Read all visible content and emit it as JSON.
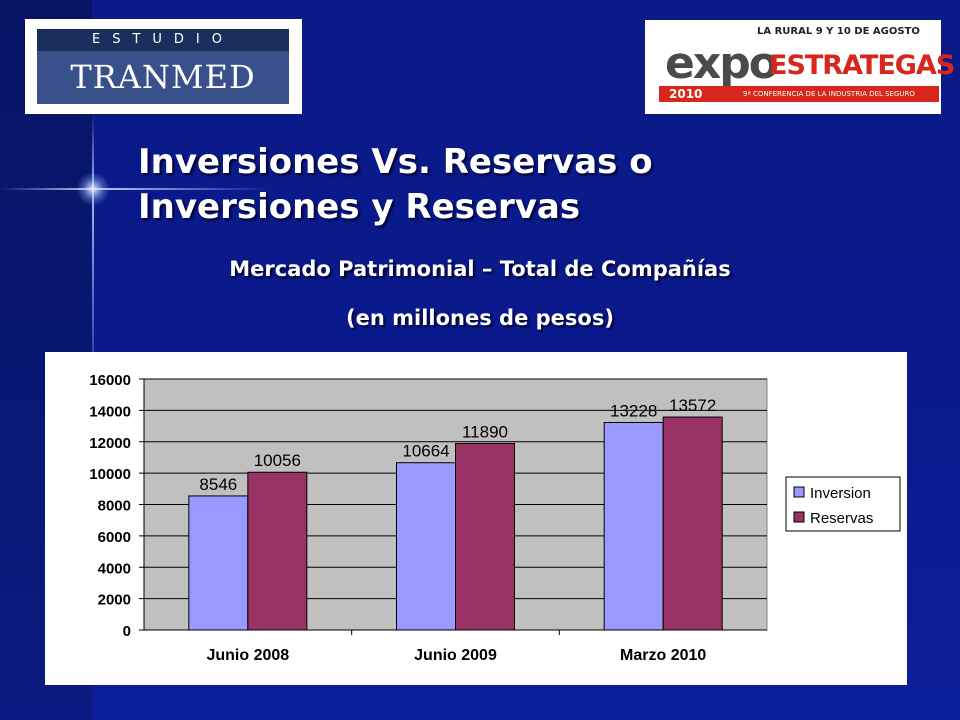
{
  "logos": {
    "left": {
      "top_text": "ESTUDIO",
      "main_text": "TRANMED"
    },
    "right": {
      "top_text": "LA RURAL 9 Y 10 DE AGOSTO",
      "brand_part1": "expo",
      "brand_part2": "ESTRATEGAS",
      "year": "2010",
      "tagline": "9ª CONFERENCIA DE LA INDUSTRIA DEL SEGURO"
    }
  },
  "title_line1": "Inversiones Vs. Reservas o",
  "title_line2": "Inversiones y Reservas",
  "subtitle_line1": "Mercado Patrimonial – Total de Compañías",
  "subtitle_line2": "(en millones de pesos)",
  "colors": {
    "background": "#0a1a86",
    "inversion": "#9999ff",
    "reservas": "#993366",
    "plot_area": "#c0c0c0"
  },
  "chart_data": {
    "type": "bar",
    "categories": [
      "Junio 2008",
      "Junio 2009",
      "Marzo 2010"
    ],
    "series": [
      {
        "name": "Inversion",
        "values": [
          8546,
          10664,
          13228
        ],
        "color": "#9999ff"
      },
      {
        "name": "Reservas",
        "values": [
          10056,
          11890,
          13572
        ],
        "color": "#993366"
      }
    ],
    "ylim": [
      0,
      16000
    ],
    "yticks": [
      0,
      2000,
      4000,
      6000,
      8000,
      10000,
      12000,
      14000,
      16000
    ],
    "grid": true,
    "legend": "right",
    "data_labels": true
  }
}
